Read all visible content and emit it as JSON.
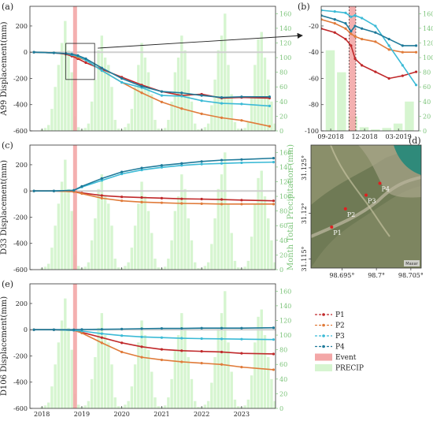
{
  "chart_data": [
    {
      "id": "a",
      "type": "line",
      "panel_label": "(a)",
      "ylabel": "A99 Displacement(mm)",
      "y2label": "",
      "ylim": [
        -600,
        350
      ],
      "y2lim": [
        0,
        170
      ],
      "yticks": [
        -600,
        -400,
        -200,
        0,
        200
      ],
      "y2ticks": [
        0,
        20,
        40,
        60,
        80,
        100,
        120,
        140,
        160
      ],
      "xlim": [
        2017.7,
        2023.85
      ],
      "xticks": [
        2018,
        2019,
        2020,
        2021,
        2022,
        2023
      ],
      "xticklabels": [
        "",
        "",
        "",
        "",
        "",
        ""
      ],
      "event_x": 2018.83,
      "series": [
        {
          "key": "P1",
          "x": [
            2017.8,
            2018.3,
            2018.6,
            2018.75,
            2018.9,
            2019.1,
            2019.5,
            2020.0,
            2020.5,
            2021.0,
            2021.5,
            2022.0,
            2022.5,
            2023.0,
            2023.7
          ],
          "y": [
            0,
            -5,
            -15,
            -30,
            -50,
            -80,
            -130,
            -190,
            -250,
            -300,
            -330,
            -320,
            -350,
            -345,
            -350
          ]
        },
        {
          "key": "P2",
          "x": [
            2017.8,
            2018.3,
            2018.6,
            2018.75,
            2018.9,
            2019.1,
            2019.5,
            2020.0,
            2020.5,
            2021.0,
            2021.5,
            2022.0,
            2022.5,
            2023.0,
            2023.7
          ],
          "y": [
            0,
            -5,
            -10,
            -20,
            -40,
            -60,
            -140,
            -230,
            -310,
            -380,
            -430,
            -470,
            -500,
            -520,
            -565
          ]
        },
        {
          "key": "P3",
          "x": [
            2017.8,
            2018.3,
            2018.6,
            2018.75,
            2018.9,
            2019.1,
            2019.5,
            2020.0,
            2020.5,
            2021.0,
            2021.5,
            2022.0,
            2022.5,
            2023.0,
            2023.7
          ],
          "y": [
            0,
            -5,
            -10,
            -20,
            -30,
            -60,
            -140,
            -230,
            -270,
            -330,
            -335,
            -370,
            -390,
            -395,
            -410
          ]
        },
        {
          "key": "P4",
          "x": [
            2017.8,
            2018.3,
            2018.6,
            2018.75,
            2018.9,
            2019.1,
            2019.5,
            2020.0,
            2020.5,
            2021.0,
            2021.5,
            2022.0,
            2022.5,
            2023.0,
            2023.7
          ],
          "y": [
            0,
            -5,
            -10,
            -15,
            -25,
            -50,
            -120,
            -200,
            -260,
            -300,
            -310,
            -330,
            -345,
            -340,
            -340
          ]
        }
      ]
    },
    {
      "id": "b",
      "type": "line",
      "panel_label": "(b)",
      "ylabel": "",
      "ylim": [
        -100,
        -5
      ],
      "y2lim": [
        0,
        170
      ],
      "yticks": [
        -100,
        -80,
        -60,
        -40,
        -20
      ],
      "y2ticks": [
        0,
        20,
        40,
        60,
        80,
        100,
        120,
        140,
        160
      ],
      "xlim": [
        2018.6,
        2019.32
      ],
      "xticks": [
        2018.67,
        2018.92,
        2019.17
      ],
      "xticklabels": [
        "09-2018",
        "12-2018",
        "03-2019"
      ],
      "event_x": 2018.83,
      "event_dashed": [
        2018.805,
        2018.855
      ],
      "series": [
        {
          "key": "P1",
          "x": [
            2018.6,
            2018.7,
            2018.78,
            2018.82,
            2018.85,
            2018.9,
            2019.0,
            2019.1,
            2019.2,
            2019.3
          ],
          "y": [
            -22,
            -25,
            -30,
            -35,
            -45,
            -50,
            -55,
            -60,
            -58,
            -55
          ]
        },
        {
          "key": "P2",
          "x": [
            2018.6,
            2018.7,
            2018.78,
            2018.82,
            2018.85,
            2018.9,
            2019.0,
            2019.1,
            2019.2,
            2019.3
          ],
          "y": [
            -15,
            -18,
            -22,
            -26,
            -28,
            -30,
            -32,
            -38,
            -40,
            -40
          ]
        },
        {
          "key": "P3",
          "x": [
            2018.6,
            2018.7,
            2018.78,
            2018.82,
            2018.85,
            2018.9,
            2019.0,
            2019.1,
            2019.2,
            2019.3
          ],
          "y": [
            -8,
            -9,
            -10,
            -13,
            -12,
            -14,
            -20,
            -35,
            -50,
            -65
          ]
        },
        {
          "key": "P4",
          "x": [
            2018.6,
            2018.7,
            2018.78,
            2018.82,
            2018.85,
            2018.9,
            2019.0,
            2019.1,
            2019.2,
            2019.3
          ],
          "y": [
            -12,
            -15,
            -18,
            -24,
            -20,
            -22,
            -25,
            -30,
            -35,
            -35
          ]
        }
      ]
    },
    {
      "id": "c",
      "type": "line",
      "panel_label": "(c)",
      "ylabel": "D33 Displacement(mm)",
      "y2label": "Month Total Precipitation (mm)",
      "ylim": [
        -600,
        350
      ],
      "y2lim": [
        0,
        170
      ],
      "yticks": [
        -600,
        -400,
        -200,
        0,
        200
      ],
      "y2ticks": [
        0,
        20,
        40,
        60,
        80,
        100,
        120,
        140,
        160
      ],
      "xlim": [
        2017.7,
        2023.85
      ],
      "xticks": [
        2018,
        2019,
        2020,
        2021,
        2022,
        2023
      ],
      "xticklabels": [
        "",
        "",
        "",
        "",
        "",
        ""
      ],
      "event_x": 2018.83,
      "series": [
        {
          "key": "P1",
          "x": [
            2017.8,
            2018.3,
            2018.8,
            2019.0,
            2019.5,
            2020.0,
            2020.5,
            2021.0,
            2021.5,
            2022.0,
            2022.5,
            2023.0,
            2023.8
          ],
          "y": [
            0,
            0,
            -5,
            -15,
            -35,
            -45,
            -50,
            -55,
            -60,
            -62,
            -65,
            -70,
            -75
          ]
        },
        {
          "key": "P2",
          "x": [
            2017.8,
            2018.3,
            2018.8,
            2019.0,
            2019.5,
            2020.0,
            2020.5,
            2021.0,
            2021.5,
            2022.0,
            2022.5,
            2023.0,
            2023.8
          ],
          "y": [
            0,
            0,
            -5,
            -20,
            -55,
            -75,
            -85,
            -90,
            -95,
            -97,
            -100,
            -100,
            -100
          ]
        },
        {
          "key": "P3",
          "x": [
            2017.8,
            2018.3,
            2018.8,
            2019.0,
            2019.5,
            2020.0,
            2020.5,
            2021.0,
            2021.5,
            2022.0,
            2022.5,
            2023.0,
            2023.8
          ],
          "y": [
            0,
            0,
            5,
            30,
            80,
            130,
            160,
            180,
            195,
            205,
            210,
            215,
            220
          ]
        },
        {
          "key": "P4",
          "x": [
            2017.8,
            2018.3,
            2018.8,
            2019.0,
            2019.5,
            2020.0,
            2020.5,
            2021.0,
            2021.5,
            2022.0,
            2022.5,
            2023.0,
            2023.8
          ],
          "y": [
            0,
            0,
            5,
            35,
            95,
            145,
            175,
            195,
            210,
            225,
            235,
            240,
            250
          ]
        }
      ]
    },
    {
      "id": "e",
      "type": "line",
      "panel_label": "(e)",
      "ylabel": "D106 Displacement(mm)",
      "y2label": "",
      "ylim": [
        -600,
        350
      ],
      "y2lim": [
        0,
        170
      ],
      "yticks": [
        -600,
        -400,
        -200,
        0,
        200
      ],
      "y2ticks": [
        0,
        20,
        40,
        60,
        80,
        100,
        120,
        140,
        160
      ],
      "xlim": [
        2017.7,
        2023.85
      ],
      "xticks": [
        2018,
        2019,
        2020,
        2021,
        2022,
        2023
      ],
      "xticklabels": [
        "2018",
        "2019",
        "2020",
        "2021",
        "2022",
        "2023"
      ],
      "event_x": 2018.83,
      "series": [
        {
          "key": "P1",
          "x": [
            2017.8,
            2018.3,
            2018.8,
            2019.0,
            2019.5,
            2020.0,
            2020.5,
            2021.0,
            2021.5,
            2022.0,
            2022.5,
            2023.0,
            2023.8
          ],
          "y": [
            0,
            0,
            -5,
            -20,
            -60,
            -100,
            -130,
            -150,
            -160,
            -165,
            -170,
            -180,
            -185
          ]
        },
        {
          "key": "P2",
          "x": [
            2017.8,
            2018.3,
            2018.8,
            2019.0,
            2019.5,
            2020.0,
            2020.5,
            2021.0,
            2021.5,
            2022.0,
            2022.5,
            2023.0,
            2023.8
          ],
          "y": [
            0,
            0,
            -5,
            -25,
            -100,
            -170,
            -210,
            -230,
            -245,
            -255,
            -265,
            -285,
            -305
          ]
        },
        {
          "key": "P3",
          "x": [
            2017.8,
            2018.3,
            2018.8,
            2019.0,
            2019.5,
            2020.0,
            2020.5,
            2021.0,
            2021.5,
            2022.0,
            2022.5,
            2023.0,
            2023.8
          ],
          "y": [
            0,
            0,
            -5,
            -10,
            -30,
            -45,
            -55,
            -60,
            -65,
            -68,
            -70,
            -72,
            -75
          ]
        },
        {
          "key": "P4",
          "x": [
            2017.8,
            2018.3,
            2018.8,
            2019.0,
            2019.5,
            2020.0,
            2020.5,
            2021.0,
            2021.5,
            2022.0,
            2022.5,
            2023.0,
            2023.8
          ],
          "y": [
            0,
            0,
            0,
            2,
            3,
            5,
            8,
            10,
            10,
            12,
            12,
            12,
            15
          ]
        }
      ]
    }
  ],
  "precip": {
    "values": [
      2,
      4,
      8,
      30,
      60,
      90,
      120,
      150,
      110,
      80,
      20,
      5,
      2,
      4,
      10,
      40,
      70,
      110,
      130,
      100,
      90,
      60,
      15,
      3,
      2,
      5,
      10,
      30,
      60,
      90,
      120,
      100,
      80,
      50,
      15,
      3,
      2,
      4,
      15,
      40,
      80,
      100,
      130,
      110,
      70,
      40,
      10,
      2,
      2,
      5,
      10,
      35,
      70,
      110,
      130,
      160,
      90,
      50,
      12,
      3,
      2,
      4,
      12,
      45,
      90,
      125,
      135,
      100,
      70,
      40,
      10,
      2
    ],
    "start_year": 2018.0,
    "ylim": [
      0,
      170
    ]
  },
  "map": {
    "panel_label": "(d)",
    "points": [
      {
        "label": "P1",
        "lon": 98.6935,
        "lat": 31.1185
      },
      {
        "label": "P2",
        "lon": 98.6955,
        "lat": 31.1205
      },
      {
        "label": "P3",
        "lon": 98.6985,
        "lat": 31.122
      },
      {
        "label": "P4",
        "lon": 98.7005,
        "lat": 31.1233
      }
    ],
    "lon_ticks": [
      "98.695°",
      "98.7°",
      "98.705°"
    ],
    "lat_ticks": [
      "31.125°",
      "31.12°",
      "31.115°"
    ],
    "lon_values": [
      98.695,
      98.7,
      98.705
    ],
    "lat_values": [
      31.125,
      31.12,
      31.115
    ],
    "xlim": [
      98.6905,
      98.7065
    ],
    "ylim": [
      31.114,
      31.1275
    ],
    "attribution": "Maxar"
  },
  "legend": {
    "items": [
      {
        "key": "P1",
        "label": "P1",
        "color": "#c0282a",
        "kind": "line"
      },
      {
        "key": "P2",
        "label": "P2",
        "color": "#e07b3a",
        "kind": "line"
      },
      {
        "key": "P3",
        "label": "P3",
        "color": "#3bbad6",
        "kind": "line"
      },
      {
        "key": "P4",
        "label": "P4",
        "color": "#1f7a9a",
        "kind": "line"
      },
      {
        "key": "Event",
        "label": "Event",
        "color": "#f3a7a7",
        "kind": "patch"
      },
      {
        "key": "PRECIP",
        "label": "PRECIP",
        "color": "#d6f5d0",
        "kind": "patch"
      }
    ]
  },
  "colors": {
    "P1": "#c0282a",
    "P2": "#e07b3a",
    "P3": "#3bbad6",
    "P4": "#1f7a9a",
    "event": "#f3a7a7",
    "precip": "#d6f5d0",
    "precip_axis": "#7cc47a"
  }
}
